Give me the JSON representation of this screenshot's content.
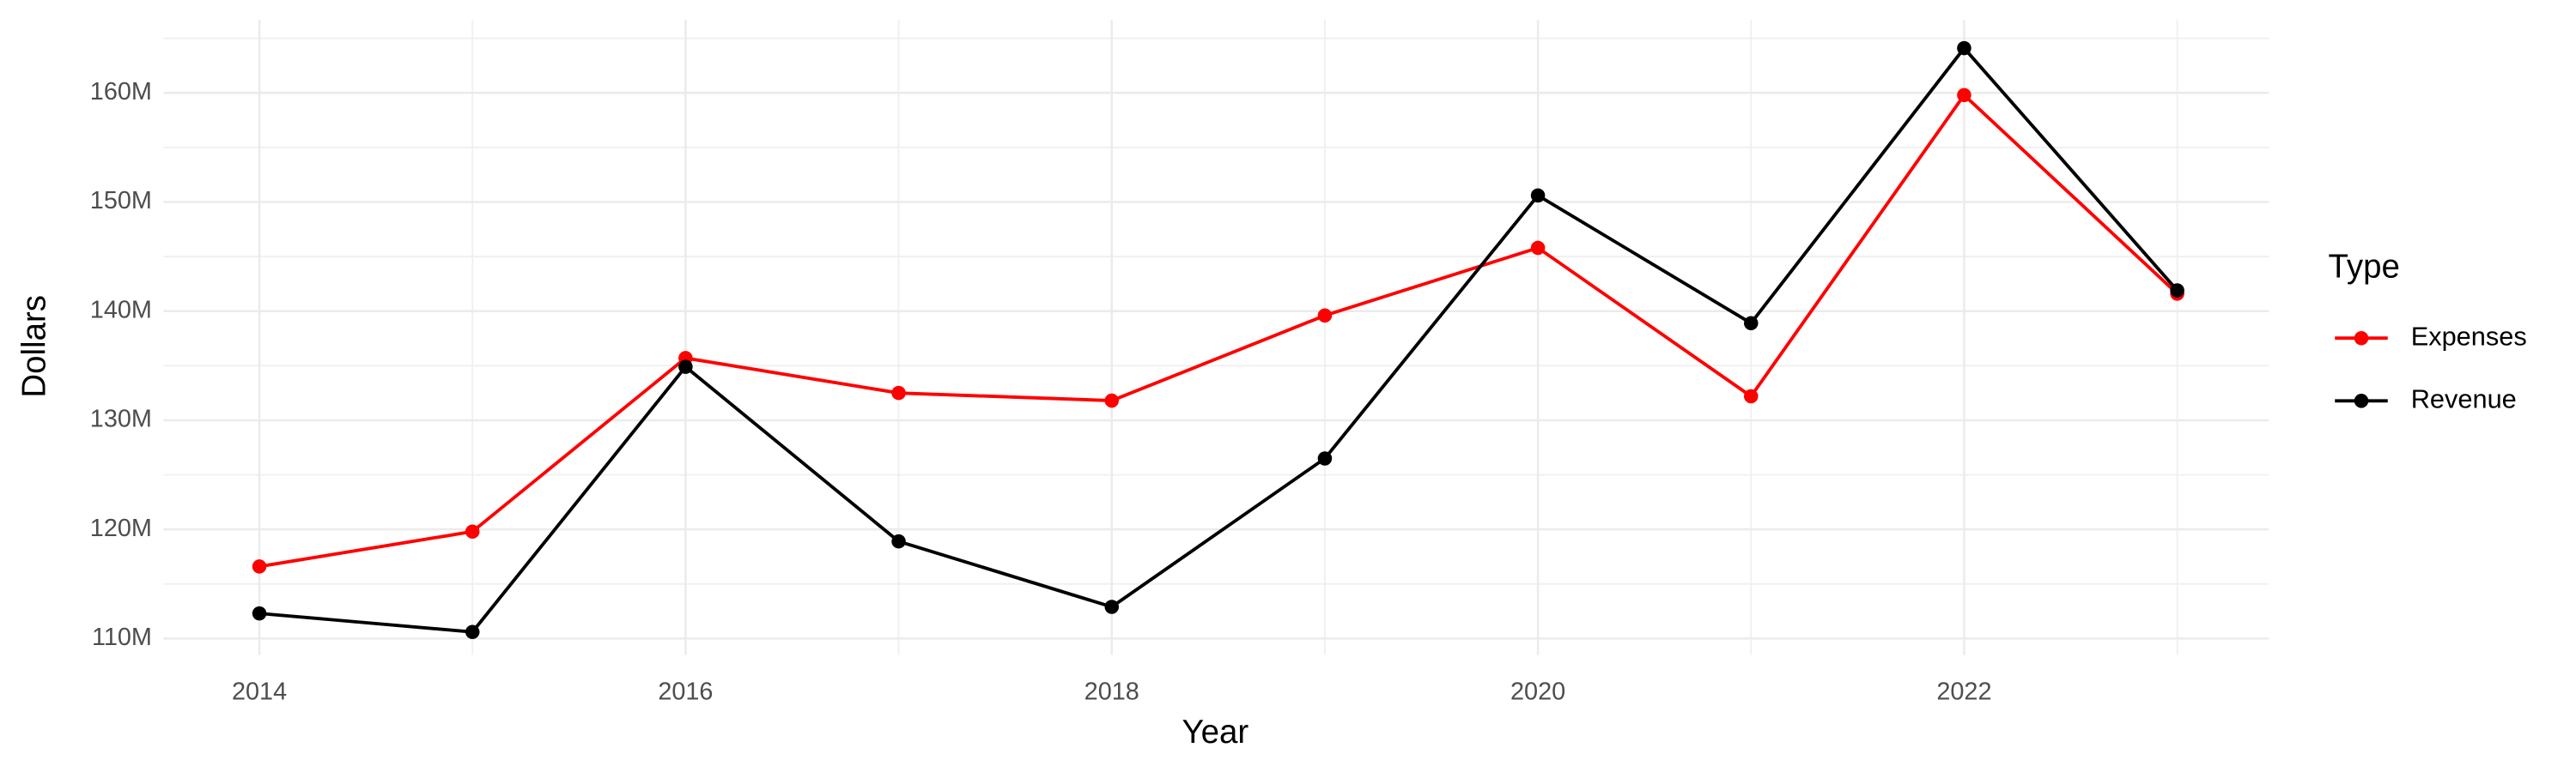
{
  "chart_data": {
    "type": "line",
    "x_label": "Year",
    "y_label": "Dollars",
    "x": [
      2014,
      2015,
      2016,
      2017,
      2018,
      2019,
      2020,
      2021,
      2022,
      2023
    ],
    "series": [
      {
        "name": "Expenses",
        "color": "#ff0000",
        "values": [
          116600000,
          119800000,
          135700000,
          132500000,
          131800000,
          139600000,
          145800000,
          132200000,
          159800000,
          141600000
        ]
      },
      {
        "name": "Revenue",
        "color": "#000000",
        "values": [
          112300000,
          110600000,
          134900000,
          118900000,
          112900000,
          126500000,
          150600000,
          138900000,
          164100000,
          141900000
        ]
      }
    ],
    "xlim": [
      2013.55,
      2023.43
    ],
    "xticks": [
      2014,
      2016,
      2018,
      2020,
      2022
    ],
    "ylim": [
      108500000,
      166700000
    ],
    "yticks": [
      {
        "value": 110000000,
        "label": "110M"
      },
      {
        "value": 120000000,
        "label": "120M"
      },
      {
        "value": 130000000,
        "label": "130M"
      },
      {
        "value": 140000000,
        "label": "140M"
      },
      {
        "value": 150000000,
        "label": "150M"
      },
      {
        "value": 160000000,
        "label": "160M"
      }
    ],
    "grid": true,
    "legend_title": "Type",
    "legend_position": "right"
  }
}
